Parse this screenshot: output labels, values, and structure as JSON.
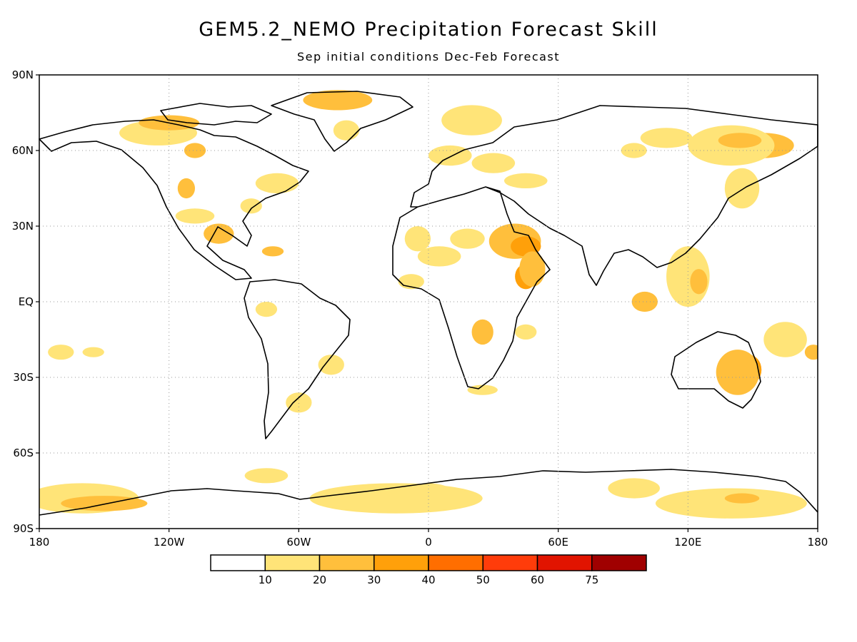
{
  "figure": {
    "title": "GEM5.2_NEMO Precipitation Forecast Skill",
    "subtitle": "Sep initial conditions   Dec-Feb Forecast"
  },
  "map": {
    "projection": "equirectangular",
    "lon_range": [
      -180,
      180
    ],
    "lat_range": [
      -90,
      90
    ],
    "grid": "dotted",
    "lat_labels": [
      {
        "lat": 90,
        "text": "90N"
      },
      {
        "lat": 60,
        "text": "60N"
      },
      {
        "lat": 30,
        "text": "30N"
      },
      {
        "lat": 0,
        "text": "EQ"
      },
      {
        "lat": -30,
        "text": "30S"
      },
      {
        "lat": -60,
        "text": "60S"
      },
      {
        "lat": -90,
        "text": "90S"
      }
    ],
    "lon_labels": [
      {
        "lon": -180,
        "text": "180"
      },
      {
        "lon": -120,
        "text": "120W"
      },
      {
        "lon": -60,
        "text": "60W"
      },
      {
        "lon": 0,
        "text": "0"
      },
      {
        "lon": 60,
        "text": "60E"
      },
      {
        "lon": 120,
        "text": "120E"
      },
      {
        "lon": 180,
        "text": "180"
      }
    ]
  },
  "colorbar": {
    "colors": [
      "#ffffff",
      "#ffe478",
      "#ffbf3c",
      "#ffa00a",
      "#ff6e00",
      "#ff3c0a",
      "#e11400",
      "#a00000"
    ],
    "labels": [
      "10",
      "20",
      "30",
      "40",
      "50",
      "60",
      "75"
    ]
  },
  "skill_regions": [
    {
      "lon": 155,
      "lat": 62,
      "rx": 14,
      "ry": 5,
      "level": 2
    },
    {
      "lon": 140,
      "lat": 62,
      "rx": 20,
      "ry": 8,
      "level": 1
    },
    {
      "lon": 144,
      "lat": 64,
      "rx": 10,
      "ry": 3,
      "level": 2
    },
    {
      "lon": 145,
      "lat": 45,
      "rx": 8,
      "ry": 8,
      "level": 1
    },
    {
      "lon": 110,
      "lat": 65,
      "rx": 12,
      "ry": 4,
      "level": 1
    },
    {
      "lon": 95,
      "lat": 60,
      "rx": 6,
      "ry": 3,
      "level": 1
    },
    {
      "lon": -125,
      "lat": 67,
      "rx": 18,
      "ry": 5,
      "level": 1
    },
    {
      "lon": -120,
      "lat": 71,
      "rx": 14,
      "ry": 3,
      "level": 2
    },
    {
      "lon": -108,
      "lat": 60,
      "rx": 5,
      "ry": 3,
      "level": 2
    },
    {
      "lon": -112,
      "lat": 45,
      "rx": 4,
      "ry": 4,
      "level": 2
    },
    {
      "lon": -108,
      "lat": 34,
      "rx": 9,
      "ry": 3,
      "level": 1
    },
    {
      "lon": -97,
      "lat": 27,
      "rx": 7,
      "ry": 4,
      "level": 2
    },
    {
      "lon": -82,
      "lat": 38,
      "rx": 5,
      "ry": 3,
      "level": 1
    },
    {
      "lon": -70,
      "lat": 47,
      "rx": 10,
      "ry": 4,
      "level": 1
    },
    {
      "lon": -72,
      "lat": 20,
      "rx": 5,
      "ry": 2,
      "level": 2
    },
    {
      "lon": -42,
      "lat": 80,
      "rx": 16,
      "ry": 4,
      "level": 2
    },
    {
      "lon": -38,
      "lat": 68,
      "rx": 6,
      "ry": 4,
      "level": 1
    },
    {
      "lon": 20,
      "lat": 72,
      "rx": 14,
      "ry": 6,
      "level": 1
    },
    {
      "lon": 10,
      "lat": 58,
      "rx": 10,
      "ry": 4,
      "level": 1
    },
    {
      "lon": 30,
      "lat": 55,
      "rx": 10,
      "ry": 4,
      "level": 1
    },
    {
      "lon": 45,
      "lat": 48,
      "rx": 10,
      "ry": 3,
      "level": 1
    },
    {
      "lon": 40,
      "lat": 24,
      "rx": 12,
      "ry": 7,
      "level": 2
    },
    {
      "lon": 45,
      "lat": 22,
      "rx": 7,
      "ry": 4,
      "level": 3
    },
    {
      "lon": 45,
      "lat": 10,
      "rx": 5,
      "ry": 5,
      "level": 3
    },
    {
      "lon": 48,
      "lat": 13,
      "rx": 6,
      "ry": 7,
      "level": 2
    },
    {
      "lon": 18,
      "lat": 25,
      "rx": 8,
      "ry": 4,
      "level": 1
    },
    {
      "lon": 5,
      "lat": 18,
      "rx": 10,
      "ry": 4,
      "level": 1
    },
    {
      "lon": -8,
      "lat": 8,
      "rx": 6,
      "ry": 3,
      "level": 1
    },
    {
      "lon": -5,
      "lat": 25,
      "rx": 6,
      "ry": 5,
      "level": 1
    },
    {
      "lon": 25,
      "lat": -12,
      "rx": 5,
      "ry": 5,
      "level": 2
    },
    {
      "lon": 45,
      "lat": -12,
      "rx": 5,
      "ry": 3,
      "level": 1
    },
    {
      "lon": 25,
      "lat": -35,
      "rx": 7,
      "ry": 2,
      "level": 1
    },
    {
      "lon": 100,
      "lat": 0,
      "rx": 6,
      "ry": 4,
      "level": 2
    },
    {
      "lon": 120,
      "lat": 10,
      "rx": 10,
      "ry": 12,
      "level": 1
    },
    {
      "lon": 125,
      "lat": 8,
      "rx": 4,
      "ry": 5,
      "level": 2
    },
    {
      "lon": 148,
      "lat": -27,
      "rx": 6,
      "ry": 6,
      "level": 3
    },
    {
      "lon": 143,
      "lat": -28,
      "rx": 10,
      "ry": 9,
      "level": 2
    },
    {
      "lon": 165,
      "lat": -15,
      "rx": 10,
      "ry": 7,
      "level": 1
    },
    {
      "lon": 178,
      "lat": -20,
      "rx": 4,
      "ry": 3,
      "level": 2
    },
    {
      "lon": -170,
      "lat": -20,
      "rx": 6,
      "ry": 3,
      "level": 1
    },
    {
      "lon": -155,
      "lat": -20,
      "rx": 5,
      "ry": 2,
      "level": 1
    },
    {
      "lon": -75,
      "lat": -3,
      "rx": 5,
      "ry": 3,
      "level": 1
    },
    {
      "lon": -60,
      "lat": -40,
      "rx": 6,
      "ry": 4,
      "level": 1
    },
    {
      "lon": -45,
      "lat": -25,
      "rx": 6,
      "ry": 4,
      "level": 1
    },
    {
      "lon": -160,
      "lat": -78,
      "rx": 26,
      "ry": 6,
      "level": 1
    },
    {
      "lon": -150,
      "lat": -80,
      "rx": 20,
      "ry": 3,
      "level": 2
    },
    {
      "lon": -75,
      "lat": -69,
      "rx": 10,
      "ry": 3,
      "level": 1
    },
    {
      "lon": -15,
      "lat": -78,
      "rx": 40,
      "ry": 6,
      "level": 1
    },
    {
      "lon": 0,
      "lat": -75,
      "rx": 10,
      "ry": 3,
      "level": 1
    },
    {
      "lon": 140,
      "lat": -80,
      "rx": 35,
      "ry": 6,
      "level": 1
    },
    {
      "lon": 145,
      "lat": -78,
      "rx": 8,
      "ry": 2,
      "level": 2
    },
    {
      "lon": 95,
      "lat": -74,
      "rx": 12,
      "ry": 4,
      "level": 1
    }
  ]
}
